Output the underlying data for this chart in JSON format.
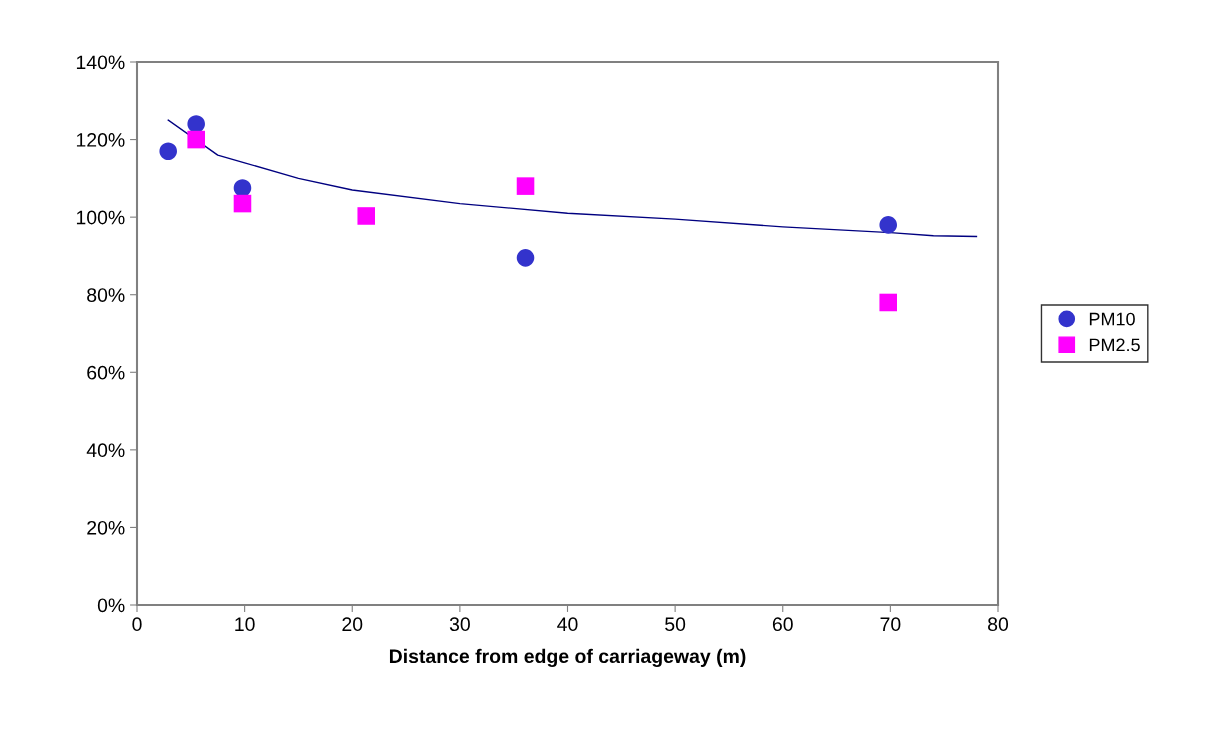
{
  "chart_data": {
    "type": "scatter",
    "xlabel": "Distance from edge of carriageway (m)",
    "xlim": [
      0,
      80
    ],
    "xticks": [
      0,
      10,
      20,
      30,
      40,
      50,
      60,
      70,
      80
    ],
    "ylim": [
      0,
      140
    ],
    "yticks": [
      {
        "value": 0,
        "label": "0%"
      },
      {
        "value": 20,
        "label": "20%"
      },
      {
        "value": 40,
        "label": "40%"
      },
      {
        "value": 60,
        "label": "60%"
      },
      {
        "value": 80,
        "label": "80%"
      },
      {
        "value": 100,
        "label": "100%"
      },
      {
        "value": 120,
        "label": "120%"
      },
      {
        "value": 140,
        "label": "140%"
      }
    ],
    "grid": false,
    "legend": "right",
    "series": [
      {
        "name": "PM10",
        "color": "#3333cc",
        "marker": "circle",
        "x": [
          2.9,
          5.5,
          9.8,
          36.1,
          69.8
        ],
        "values": [
          117,
          124,
          107.5,
          89.5,
          98
        ]
      },
      {
        "name": "PM2.5",
        "color": "#ff00ff",
        "marker": "square",
        "x": [
          5.5,
          9.8,
          21.3,
          36.1,
          69.8
        ],
        "values": [
          120,
          103.5,
          100.3,
          108,
          78
        ]
      },
      {
        "type": "line",
        "color": "#000080",
        "marker": "none",
        "line_style": "solid",
        "x": [
          2.9,
          7.5,
          10,
          15,
          20,
          30,
          40,
          50,
          60,
          70,
          74,
          78
        ],
        "values": [
          125,
          116,
          114,
          110,
          107,
          103.5,
          101,
          99.5,
          97.5,
          96,
          95.2,
          95
        ]
      }
    ]
  }
}
